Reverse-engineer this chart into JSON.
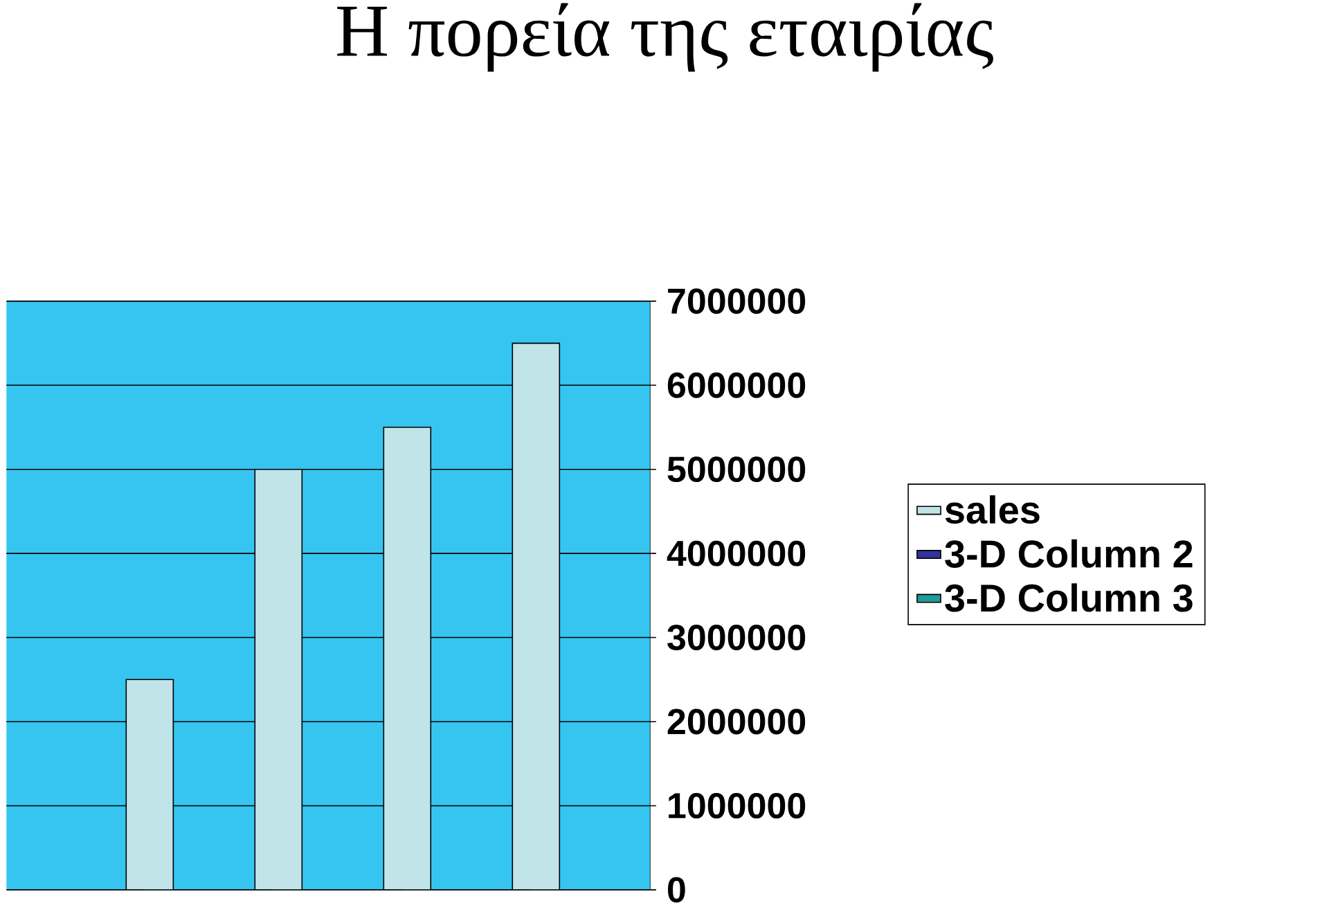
{
  "chart_data": {
    "type": "bar",
    "title": "Η πορεία της εταιρίας",
    "categories": [
      null,
      null,
      null,
      null,
      null
    ],
    "series": [
      {
        "name": "sales",
        "color": "#c0e4e8",
        "values": [
          0,
          2500000,
          5000000,
          5500000,
          6500000
        ]
      },
      {
        "name": "3-D Column 2",
        "color": "#333399",
        "values": [
          0,
          0,
          0,
          0,
          0
        ]
      },
      {
        "name": "3-D Column 3",
        "color": "#1f9a98",
        "values": [
          0,
          0,
          0,
          0,
          0
        ]
      }
    ],
    "ylim": [
      0,
      7000000
    ],
    "yticks": [
      0,
      1000000,
      2000000,
      3000000,
      4000000,
      5000000,
      6000000,
      7000000
    ],
    "grid": "y",
    "legend": "right"
  }
}
